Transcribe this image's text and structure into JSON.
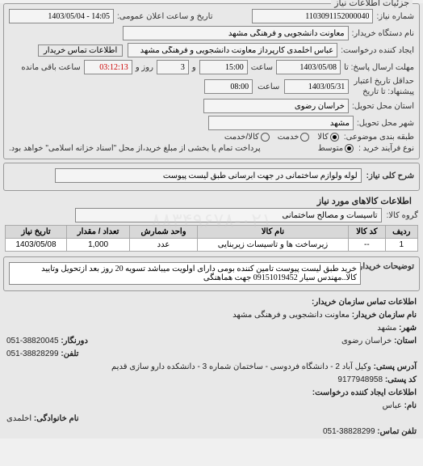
{
  "panel": {
    "title": "جزئیات اطلاعات نیاز"
  },
  "header": {
    "number_label": "شماره نیاز:",
    "number": "1103091152000040",
    "date_label": "تاریخ و ساعت اعلان عمومی:",
    "date": "14:05 - 1403/05/04",
    "buyer_label": "نام دستگاه خریدار:",
    "buyer": "معاونت دانشجویی و فرهنگی مشهد",
    "creator_label": "ایجاد کننده درخواست:",
    "creator": "عباس اخلمدی کارپرداز معاونت دانشجویی و فرهنگی مشهد",
    "contact_btn": "اطلاعات تماس خریدار",
    "deadline_label_1": "مهلت ارسال پاسخ: تا",
    "deadline_label_2": "حداقل تاریخ اعتبار",
    "deadline_label_3": "پیشنهاد: تا تاریخ",
    "deadline_date1": "1403/05/08",
    "deadline_time1_lbl": "ساعت",
    "deadline_time1": "15:00",
    "days_lbl": "و",
    "days_val": "3",
    "days_lbl2": "روز و",
    "remain": "03:12:13",
    "remain_lbl": "ساعت باقی مانده",
    "deadline_date2": "1403/05/31",
    "deadline_time2": "08:00",
    "province_label": "استان محل تحویل:",
    "province": "خراسان رضوی",
    "city_label": "شهر محل تحویل:",
    "city": "مشهد",
    "category_label": "طبقه بندی موضوعی:",
    "cat_radios": [
      "کالا",
      "خدمت",
      "کالا/خدمت"
    ],
    "cat_selected": 0,
    "process_label": "نوع فرآیند خرید :",
    "proc_radios": [
      "متوسط"
    ],
    "note": "پرداخت تمام یا بخشی از مبلغ خرید،از محل \"اسناد خزانه اسلامی\" خواهد بود."
  },
  "need": {
    "title_label": "شرح کلی نیاز:",
    "title": "لوله ولوازم ساختمانی در جهت آبرسانی طبق لیست پیوست"
  },
  "goods": {
    "section": "اطلاعات کالاهای مورد نیاز",
    "group_label": "گروه کالا:",
    "group": "تاسیسات و مصالح ساختمانی",
    "columns": [
      "ردیف",
      "کد کالا",
      "نام کالا",
      "واحد شمارش",
      "تعداد / مقدار",
      "تاریخ نیاز"
    ],
    "rows": [
      [
        "1",
        "--",
        "زیرساخت ها و تاسیسات زیربنایی",
        "عدد",
        "1,000",
        "1403/05/08"
      ]
    ]
  },
  "notes": {
    "label": "توضیحات خریدار:",
    "text": "خرید طبق لیست پیوست تامین کننده بومی دارای اولویت میباشد تسویه 20 روز بعد ازتحویل وتایید کالا..مهندس سیار 09151019452 جهت هماهنگی"
  },
  "contact": {
    "section": "اطلاعات تماس سازمان خریدار:",
    "org_lbl": "نام سازمان خریدار:",
    "org": "معاونت دانشجویی و فرهنگی مشهد",
    "city_lbl": "شهر:",
    "city": "مشهد",
    "prov_lbl": "استان:",
    "prov": "خراسان رضوی",
    "fax_lbl": "دورنگار:",
    "fax": "38820045-051",
    "tel_lbl": "تلفن:",
    "tel": "38828299-051",
    "addr_lbl": "آدرس پستی:",
    "addr": "وکیل آباد 2 - دانشگاه فردوسی - ساختمان شماره 3 - دانشکده دارو سازی قدیم",
    "post_lbl": "کد پستی:",
    "post": "9177948958",
    "section2": "اطلاعات ایجاد کننده درخواست:",
    "name_lbl": "نام:",
    "name": "عباس",
    "lname_lbl": "نام خانوادگی:",
    "lname": "اخلمدی",
    "tel2_lbl": "تلفن تماس:",
    "tel2": "38828299-051"
  },
  "watermark": "۸۸۳۴۹۶۷۸-۰۲۱",
  "colors": {
    "border": "#999",
    "bg": "#e8e8e8",
    "th": "#d8d8d8"
  }
}
